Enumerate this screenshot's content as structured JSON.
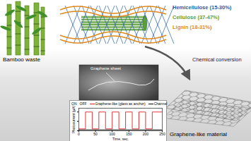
{
  "source": {
    "label": "Bamboo waste"
  },
  "components": [
    {
      "label": "Hemicellulose (15-30%)",
      "color": "#1f5fa8"
    },
    {
      "label": "Cellulose (37-47%)",
      "color": "#5a9e3a"
    },
    {
      "label": "Lignin (18-31%)",
      "color": "#e08a1e"
    }
  ],
  "process": {
    "label": "Chemical conversion"
  },
  "product": {
    "label": "Graphene-like material"
  },
  "micrograph": {
    "label": "Graphene sheet"
  },
  "chart_data": {
    "type": "line",
    "x_label": "Time, sec.",
    "y_label": "Photocurrent (μA)",
    "annotations": [
      "ON",
      "OFF"
    ],
    "xlim": [
      0,
      250
    ],
    "xticks": [
      0,
      50,
      100,
      150,
      200,
      250
    ],
    "ylim": [
      0,
      1.2
    ],
    "yticks": [
      0,
      0.5,
      1
    ],
    "tick_labels": "x",
    "series": [
      {
        "name": "Graphene-like (glass as anchor)",
        "color": "#e02020",
        "x": [
          0,
          20,
          20,
          40,
          40,
          60,
          60,
          80,
          80,
          100,
          100,
          120,
          120,
          140,
          140,
          160,
          160,
          180,
          180,
          200,
          200,
          220,
          220,
          250
        ],
        "values": [
          0.1,
          0.1,
          1,
          1,
          0.1,
          0.1,
          1,
          1,
          0.1,
          0.1,
          1,
          1,
          0.1,
          0.1,
          1,
          1,
          0.1,
          0.1,
          1,
          1,
          0.1,
          0.1,
          1,
          1
        ]
      },
      {
        "name": "Channel",
        "color": "#000000",
        "x": [
          0,
          250
        ],
        "values": [
          0.05,
          0.05
        ]
      }
    ]
  }
}
